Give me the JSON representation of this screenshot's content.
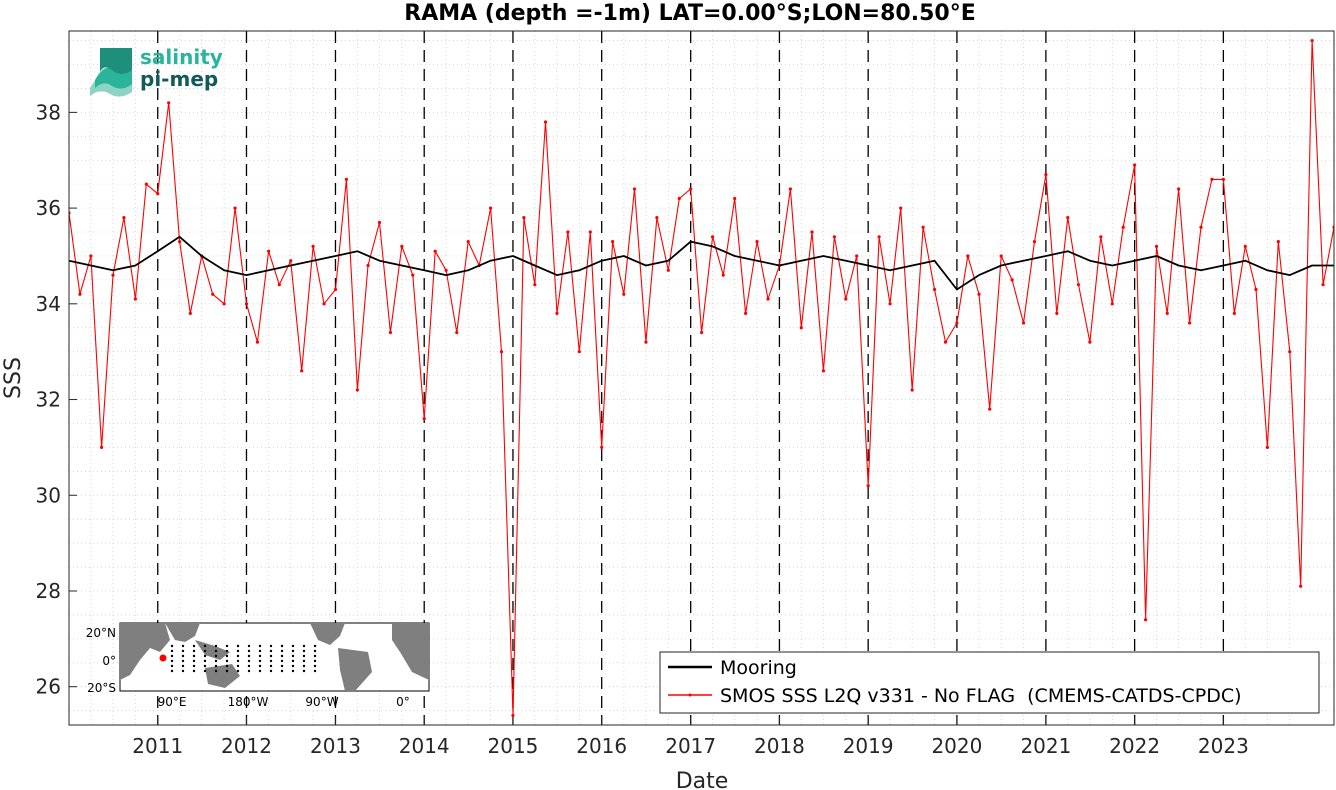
{
  "chart_data": {
    "type": "line",
    "title": "RAMA (depth =-1m) LAT=0.00°S;LON=80.50°E",
    "xlabel": "Date",
    "ylabel": "SSS",
    "xlim": [
      "2010-01-01",
      "2024-03-31"
    ],
    "ylim": [
      25.2,
      39.7
    ],
    "x_ticks": [
      "2011",
      "2012",
      "2013",
      "2014",
      "2015",
      "2016",
      "2017",
      "2018",
      "2019",
      "2020",
      "2021",
      "2022",
      "2023"
    ],
    "y_ticks": [
      "26",
      "28",
      "30",
      "32",
      "34",
      "36",
      "38"
    ],
    "grid": true,
    "legend_position": "bottom-right",
    "series": [
      {
        "name": "Mooring",
        "color": "#000000",
        "x": [
          "2010-01-01",
          "2010-04-01",
          "2010-07-01",
          "2010-10-01",
          "2011-01-01",
          "2011-04-01",
          "2011-07-01",
          "2011-10-01",
          "2012-01-01",
          "2012-04-01",
          "2012-07-01",
          "2012-10-01",
          "2013-01-01",
          "2013-04-01",
          "2013-07-01",
          "2013-10-01",
          "2014-01-01",
          "2014-04-01",
          "2014-07-01",
          "2014-10-01",
          "2015-01-01",
          "2015-04-01",
          "2015-07-01",
          "2015-10-01",
          "2016-01-01",
          "2016-04-01",
          "2016-07-01",
          "2016-10-01",
          "2017-01-01",
          "2017-04-01",
          "2017-07-01",
          "2017-10-01",
          "2018-01-01",
          "2018-04-01",
          "2018-07-01",
          "2018-10-01",
          "2019-01-01",
          "2019-04-01",
          "2019-07-01",
          "2019-10-01",
          "2020-01-01",
          "2020-04-01",
          "2020-07-01",
          "2020-10-01",
          "2021-01-01",
          "2021-04-01",
          "2021-07-01",
          "2021-10-01",
          "2022-01-01",
          "2022-04-01",
          "2022-07-01",
          "2022-10-01",
          "2023-01-01",
          "2023-04-01",
          "2023-07-01",
          "2023-10-01",
          "2024-01-01",
          "2024-03-31"
        ],
        "values": [
          34.9,
          34.8,
          34.7,
          34.8,
          35.1,
          35.4,
          35.0,
          34.7,
          34.6,
          34.7,
          34.8,
          34.9,
          35.0,
          35.1,
          34.9,
          34.8,
          34.7,
          34.6,
          34.7,
          34.9,
          35.0,
          34.8,
          34.6,
          34.7,
          34.9,
          35.0,
          34.8,
          34.9,
          35.3,
          35.2,
          35.0,
          34.9,
          34.8,
          34.9,
          35.0,
          34.9,
          34.8,
          34.7,
          34.8,
          34.9,
          34.3,
          34.6,
          34.8,
          34.9,
          35.0,
          35.1,
          34.9,
          34.8,
          34.9,
          35.0,
          34.8,
          34.7,
          34.8,
          34.9,
          34.7,
          34.6,
          34.8,
          34.8
        ]
      },
      {
        "name": "SMOS SSS L2Q v331 - No FLAG  (CMEMS-CATDS-CPDC)",
        "color": "#ff0000",
        "x": [
          "2010-01-01",
          "2010-02-15",
          "2010-04-01",
          "2010-05-15",
          "2010-07-01",
          "2010-08-15",
          "2010-10-01",
          "2010-11-15",
          "2011-01-01",
          "2011-02-15",
          "2011-04-01",
          "2011-05-15",
          "2011-07-01",
          "2011-08-15",
          "2011-10-01",
          "2011-11-15",
          "2012-01-01",
          "2012-02-15",
          "2012-04-01",
          "2012-05-15",
          "2012-07-01",
          "2012-08-15",
          "2012-10-01",
          "2012-11-15",
          "2013-01-01",
          "2013-02-15",
          "2013-04-01",
          "2013-05-15",
          "2013-07-01",
          "2013-08-15",
          "2013-10-01",
          "2013-11-15",
          "2014-01-01",
          "2014-02-15",
          "2014-04-01",
          "2014-05-15",
          "2014-07-01",
          "2014-08-15",
          "2014-10-01",
          "2014-11-15",
          "2015-01-01",
          "2015-02-15",
          "2015-04-01",
          "2015-05-15",
          "2015-07-01",
          "2015-08-15",
          "2015-10-01",
          "2015-11-15",
          "2016-01-01",
          "2016-02-15",
          "2016-04-01",
          "2016-05-15",
          "2016-07-01",
          "2016-08-15",
          "2016-10-01",
          "2016-11-15",
          "2017-01-01",
          "2017-02-15",
          "2017-04-01",
          "2017-05-15",
          "2017-07-01",
          "2017-08-15",
          "2017-10-01",
          "2017-11-15",
          "2018-01-01",
          "2018-02-15",
          "2018-04-01",
          "2018-05-15",
          "2018-07-01",
          "2018-08-15",
          "2018-10-01",
          "2018-11-15",
          "2019-01-01",
          "2019-02-15",
          "2019-04-01",
          "2019-05-15",
          "2019-07-01",
          "2019-08-15",
          "2019-10-01",
          "2019-11-15",
          "2020-01-01",
          "2020-02-15",
          "2020-04-01",
          "2020-05-15",
          "2020-07-01",
          "2020-08-15",
          "2020-10-01",
          "2020-11-15",
          "2021-01-01",
          "2021-02-15",
          "2021-04-01",
          "2021-05-15",
          "2021-07-01",
          "2021-08-15",
          "2021-10-01",
          "2021-11-15",
          "2022-01-01",
          "2022-02-15",
          "2022-04-01",
          "2022-05-15",
          "2022-07-01",
          "2022-08-15",
          "2022-10-01",
          "2022-11-15",
          "2023-01-01",
          "2023-02-15",
          "2023-04-01",
          "2023-05-15",
          "2023-07-01",
          "2023-08-15",
          "2023-10-01",
          "2023-11-15",
          "2024-01-01",
          "2024-02-15",
          "2024-03-31"
        ],
        "values": [
          35.9,
          34.2,
          35.0,
          31.0,
          34.6,
          35.8,
          34.1,
          36.5,
          36.3,
          38.2,
          35.3,
          33.8,
          35.0,
          34.2,
          34.0,
          36.0,
          34.0,
          33.2,
          35.1,
          34.4,
          34.9,
          32.6,
          35.2,
          34.0,
          34.3,
          36.6,
          32.2,
          34.8,
          35.7,
          33.4,
          35.2,
          34.6,
          31.6,
          35.1,
          34.7,
          33.4,
          35.3,
          34.8,
          36.0,
          33.0,
          25.4,
          35.8,
          34.4,
          37.8,
          33.8,
          35.5,
          33.0,
          35.5,
          31.0,
          35.3,
          34.2,
          36.4,
          33.2,
          35.8,
          34.7,
          36.2,
          36.4,
          33.4,
          35.4,
          34.6,
          36.2,
          33.8,
          35.3,
          34.1,
          34.8,
          36.4,
          33.5,
          35.5,
          32.6,
          35.4,
          34.1,
          35.0,
          30.2,
          35.4,
          34.0,
          36.0,
          32.2,
          35.6,
          34.3,
          33.2,
          33.6,
          35.0,
          34.2,
          31.8,
          35.0,
          34.5,
          33.6,
          35.3,
          36.7,
          33.8,
          35.8,
          34.4,
          33.2,
          35.4,
          34.0,
          35.6,
          36.9,
          27.4,
          35.2,
          33.8,
          36.4,
          33.6,
          35.6,
          36.6,
          36.6,
          33.8,
          35.2,
          34.3,
          31.0,
          35.3,
          33.0,
          28.1,
          39.5,
          34.4,
          35.6
        ]
      }
    ]
  },
  "legend": {
    "items": [
      {
        "label": "Mooring",
        "color": "#000000"
      },
      {
        "label": "SMOS SSS L2Q v331 - No FLAG  (CMEMS-CATDS-CPDC)",
        "color": "#ff0000"
      }
    ]
  },
  "logo": {
    "line1": "salinity",
    "line2": "pi-mep",
    "color_light": "#2ab49a",
    "color_dark": "#145a5a"
  },
  "inset_map": {
    "y_ticks": [
      "20°N",
      "0°",
      "20°S"
    ],
    "x_ticks": [
      "90°E",
      "180°W",
      "90°W",
      "0°"
    ],
    "marker_color": "#ff0000",
    "land_color": "#7f7f7f"
  }
}
